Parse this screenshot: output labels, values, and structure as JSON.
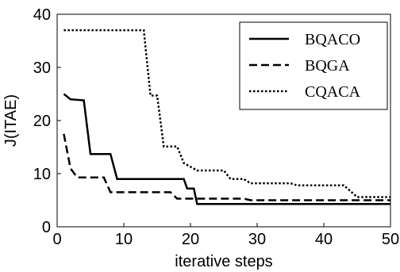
{
  "chart_data": {
    "type": "line",
    "title": "",
    "xlabel": "iterative steps",
    "ylabel": "J(ITAE)",
    "xlim": [
      0,
      50
    ],
    "ylim": [
      0,
      40
    ],
    "xticks": [
      "0",
      "10",
      "20",
      "30",
      "40",
      "50"
    ],
    "yticks": [
      "0",
      "10",
      "20",
      "30",
      "40"
    ],
    "grid": false,
    "legend_position": "top-right",
    "series": [
      {
        "name": "BQACO",
        "style": "solid",
        "color": "#000000",
        "points": [
          [
            1,
            25
          ],
          [
            2,
            24
          ],
          [
            4,
            23.8
          ],
          [
            5,
            13.7
          ],
          [
            8,
            13.7
          ],
          [
            9,
            9
          ],
          [
            19,
            9
          ],
          [
            19.5,
            7.2
          ],
          [
            20.5,
            7.2
          ],
          [
            21,
            4.3
          ],
          [
            50,
            4.3
          ]
        ]
      },
      {
        "name": "BQGA",
        "style": "dashed",
        "color": "#000000",
        "points": [
          [
            1,
            17.5
          ],
          [
            2,
            11
          ],
          [
            3,
            9.3
          ],
          [
            7,
            9.3
          ],
          [
            8,
            6.5
          ],
          [
            17,
            6.5
          ],
          [
            18,
            5.3
          ],
          [
            28,
            5.3
          ],
          [
            29,
            5
          ],
          [
            50,
            5
          ]
        ]
      },
      {
        "name": "CQACA",
        "style": "dotted",
        "color": "#000000",
        "points": [
          [
            1,
            37
          ],
          [
            13,
            37
          ],
          [
            14,
            24.7
          ],
          [
            15,
            24.7
          ],
          [
            16,
            15.1
          ],
          [
            18,
            15.1
          ],
          [
            19,
            12
          ],
          [
            21,
            10.6
          ],
          [
            25,
            10.6
          ],
          [
            26,
            9
          ],
          [
            28,
            9
          ],
          [
            29,
            8.2
          ],
          [
            35,
            8.2
          ],
          [
            36,
            7.8
          ],
          [
            43,
            7.8
          ],
          [
            45,
            5.6
          ],
          [
            50,
            5.6
          ]
        ]
      }
    ]
  }
}
